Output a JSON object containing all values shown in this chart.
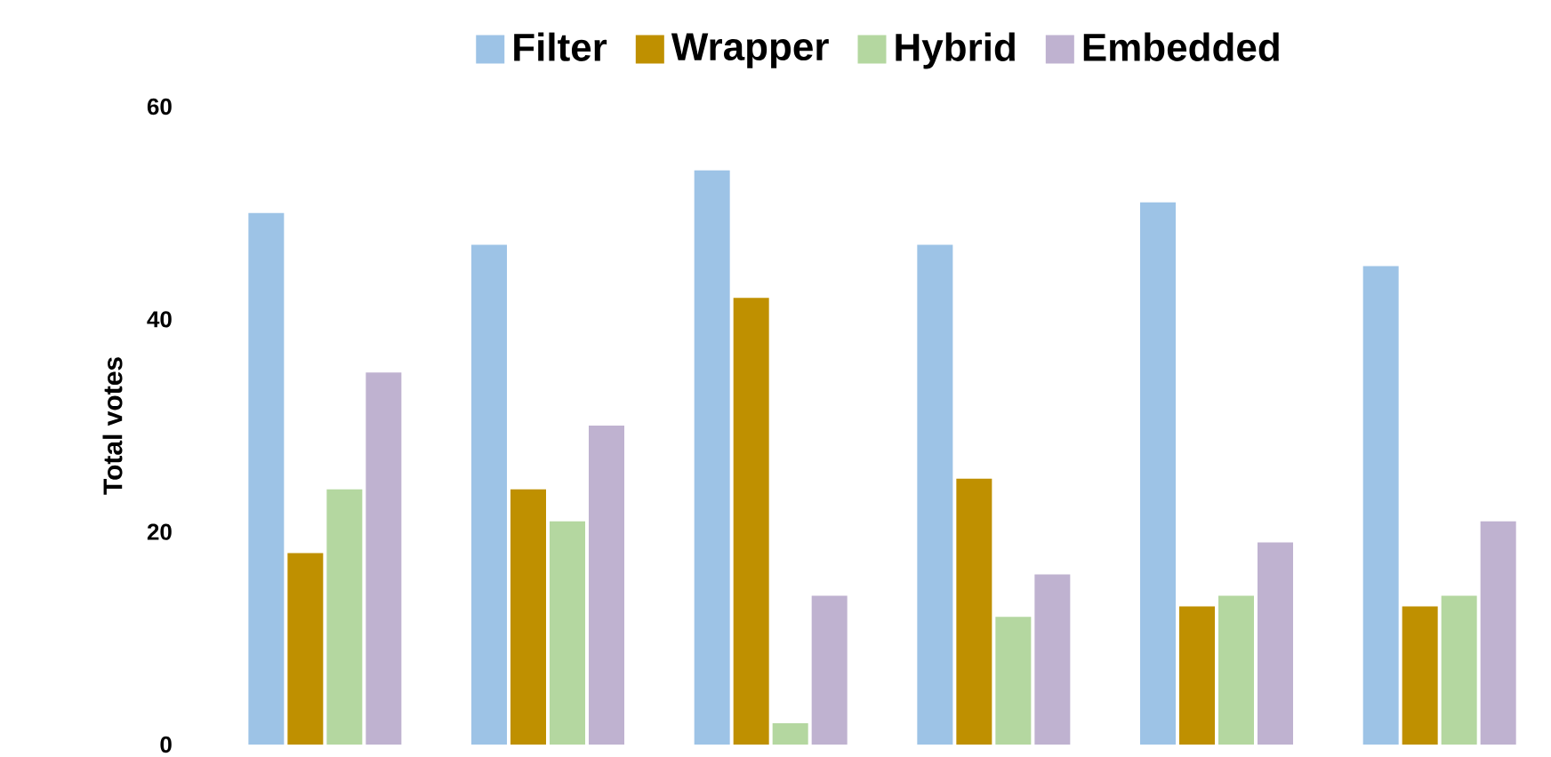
{
  "chart_data": {
    "type": "bar",
    "ylabel": "Total votes",
    "categories": [
      null,
      null,
      null,
      null,
      null,
      null
    ],
    "series": [
      {
        "name": "Filter",
        "color": "#9dc3e6",
        "values": [
          50,
          47,
          54,
          47,
          51,
          45
        ]
      },
      {
        "name": "Wrapper",
        "color": "#bf9000",
        "values": [
          18,
          24,
          42,
          25,
          13,
          13
        ]
      },
      {
        "name": "Hybrid",
        "color": "#b4d7a0",
        "values": [
          24,
          21,
          2,
          12,
          14,
          14
        ]
      },
      {
        "name": "Embedded",
        "color": "#bfb2d0",
        "values": [
          35,
          30,
          14,
          16,
          19,
          21
        ]
      }
    ],
    "ylim": [
      0,
      60
    ],
    "yticks": [
      0,
      20,
      40,
      60
    ],
    "grid": false,
    "legend": "top",
    "tick_labels": "y"
  }
}
